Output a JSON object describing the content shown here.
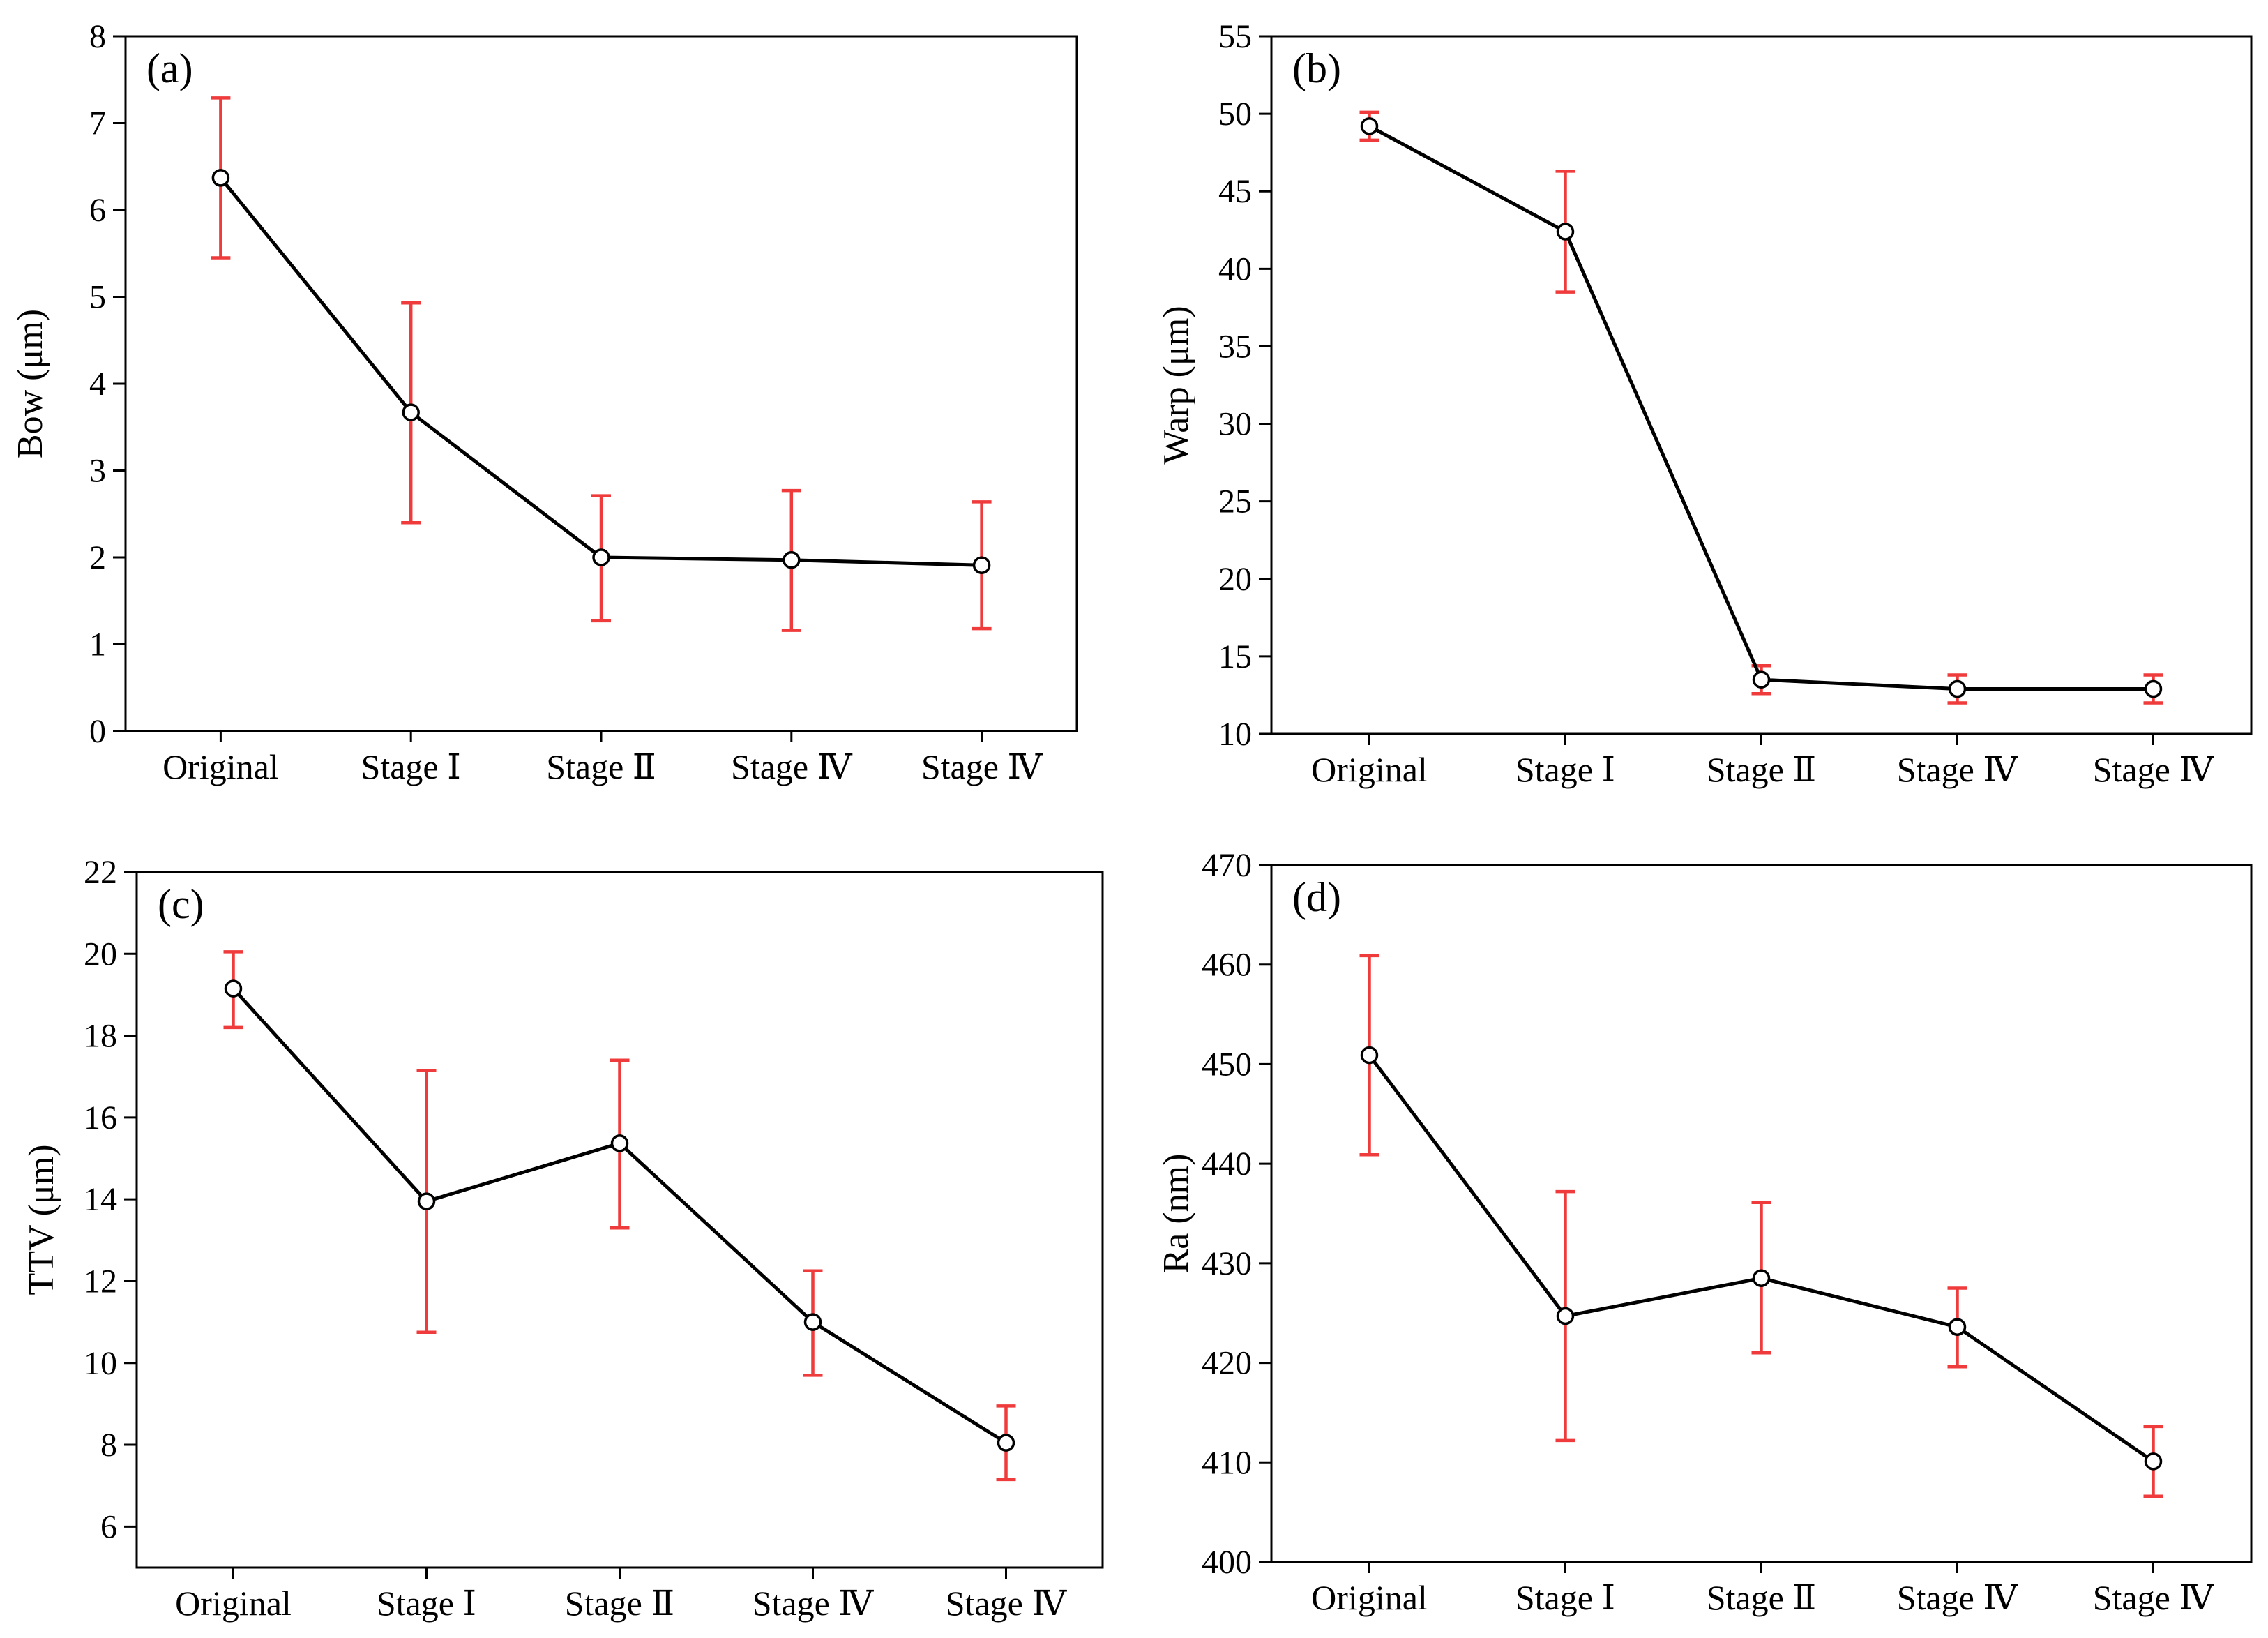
{
  "chart_data": [
    {
      "type": "line",
      "panel_label": "(a)",
      "title": "",
      "xlabel": "",
      "ylabel": "Bow (μm)",
      "categories": [
        "Original",
        "Stage Ⅰ",
        "Stage Ⅱ",
        "Stage Ⅳ",
        "Stage Ⅳ"
      ],
      "ylim": [
        0,
        8
      ],
      "yticks": [
        0,
        1,
        2,
        3,
        4,
        5,
        6,
        7,
        8
      ],
      "grid": false,
      "series": [
        {
          "name": "Bow",
          "values": [
            6.37,
            3.67,
            2.0,
            1.97,
            1.91
          ],
          "error_low": [
            5.45,
            2.4,
            1.27,
            1.16,
            1.18
          ],
          "error_high": [
            7.29,
            4.93,
            2.71,
            2.77,
            2.64
          ]
        }
      ]
    },
    {
      "type": "line",
      "panel_label": "(b)",
      "title": "",
      "xlabel": "",
      "ylabel": "Warp (μm)",
      "categories": [
        "Original",
        "Stage Ⅰ",
        "Stage Ⅱ",
        "Stage Ⅳ",
        "Stage Ⅳ"
      ],
      "ylim": [
        10,
        55
      ],
      "yticks": [
        10,
        15,
        20,
        25,
        30,
        35,
        40,
        45,
        50,
        55
      ],
      "grid": false,
      "series": [
        {
          "name": "Warp",
          "values": [
            49.2,
            42.4,
            13.5,
            12.9,
            12.9
          ],
          "error_low": [
            48.3,
            38.5,
            12.6,
            12.0,
            12.0
          ],
          "error_high": [
            50.1,
            46.3,
            14.4,
            13.8,
            13.8
          ]
        }
      ]
    },
    {
      "type": "line",
      "panel_label": "(c)",
      "title": "",
      "xlabel": "",
      "ylabel": "TTV (μm)",
      "categories": [
        "Original",
        "Stage Ⅰ",
        "Stage Ⅱ",
        "Stage Ⅳ",
        "Stage Ⅳ"
      ],
      "ylim": [
        5,
        22
      ],
      "yticks": [
        6,
        8,
        10,
        12,
        14,
        16,
        18,
        20,
        22
      ],
      "grid": false,
      "series": [
        {
          "name": "TTV",
          "values": [
            19.15,
            13.95,
            15.37,
            11.0,
            8.05
          ],
          "error_low": [
            18.2,
            10.75,
            13.3,
            9.7,
            7.15
          ],
          "error_high": [
            20.05,
            17.15,
            17.4,
            12.25,
            8.95
          ]
        }
      ]
    },
    {
      "type": "line",
      "panel_label": "(d)",
      "title": "",
      "xlabel": "",
      "ylabel": "Ra (nm)",
      "categories": [
        "Original",
        "Stage Ⅰ",
        "Stage Ⅱ",
        "Stage Ⅳ",
        "Stage Ⅳ"
      ],
      "ylim": [
        400,
        470
      ],
      "yticks": [
        400,
        410,
        420,
        430,
        440,
        450,
        460,
        470
      ],
      "grid": false,
      "series": [
        {
          "name": "Ra",
          "values": [
            450.9,
            424.7,
            428.5,
            423.6,
            410.1
          ],
          "error_low": [
            440.9,
            412.2,
            421.0,
            419.6,
            406.6
          ],
          "error_high": [
            460.9,
            437.2,
            436.1,
            427.5,
            413.6
          ]
        }
      ]
    }
  ],
  "colors": {
    "line": "#000000",
    "error_bar": "#ef3b3b",
    "marker_fill": "#ffffff"
  }
}
